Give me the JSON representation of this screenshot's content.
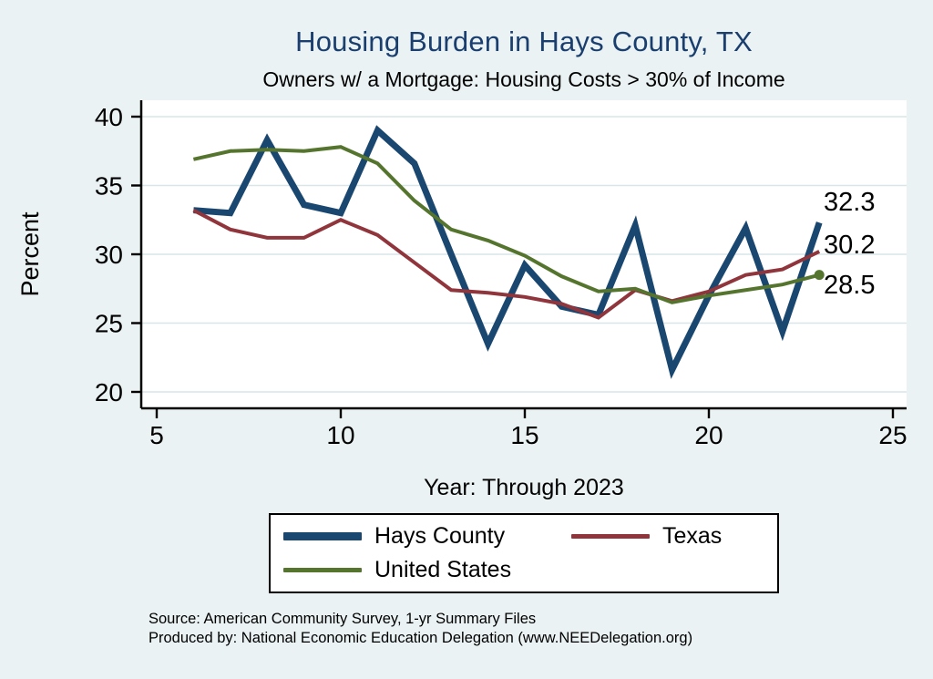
{
  "title": "Housing Burden in Hays County, TX",
  "subtitle": "Owners w/ a Mortgage: Housing Costs > 30% of Income",
  "ylabel": "Percent",
  "xlabel": "Year: Through 2023",
  "source": {
    "line1": "Source: American Community Survey, 1-yr Summary Files",
    "line2": "Produced by: National Economic Education Delegation (www.NEEDelegation.org)"
  },
  "colors": {
    "background": "#eaf2f3",
    "plot_background": "#ffffff",
    "gridline": "#d9e6e8",
    "axis": "#000000",
    "title": "#1a3e6e"
  },
  "chart_data": {
    "type": "line",
    "x": [
      6,
      7,
      8,
      9,
      10,
      11,
      12,
      13,
      14,
      15,
      16,
      17,
      18,
      19,
      20,
      21,
      22,
      23
    ],
    "series": [
      {
        "name": "Hays County",
        "color": "#1a476f",
        "width": 7,
        "values": [
          33.2,
          33.0,
          38.3,
          33.6,
          33.0,
          39.0,
          36.6,
          30.0,
          23.5,
          29.2,
          26.2,
          25.6,
          32.1,
          21.6,
          27.0,
          31.9,
          24.4,
          32.3
        ]
      },
      {
        "name": "Texas",
        "color": "#90353b",
        "width": 4,
        "values": [
          33.2,
          31.8,
          31.2,
          31.2,
          32.5,
          31.4,
          29.4,
          27.4,
          27.2,
          26.9,
          26.4,
          25.4,
          27.4,
          26.6,
          27.3,
          28.5,
          28.9,
          30.2
        ]
      },
      {
        "name": "United States",
        "color": "#55752f",
        "width": 4,
        "end_dot": true,
        "values": [
          36.9,
          37.5,
          37.6,
          37.5,
          37.8,
          36.6,
          33.9,
          31.8,
          31.0,
          29.9,
          28.4,
          27.3,
          27.5,
          26.5,
          27.0,
          27.4,
          27.8,
          28.5
        ]
      }
    ],
    "xlim": [
      5,
      25
    ],
    "ylim": [
      20,
      40
    ],
    "x_ticks": [
      5,
      10,
      15,
      20,
      25
    ],
    "y_ticks": [
      20,
      25,
      30,
      35,
      40
    ],
    "grid": true,
    "legend_position": "bottom",
    "end_labels": [
      "32.3",
      "30.2",
      "28.5"
    ],
    "legend": [
      "Hays County",
      "Texas",
      "United States"
    ]
  }
}
